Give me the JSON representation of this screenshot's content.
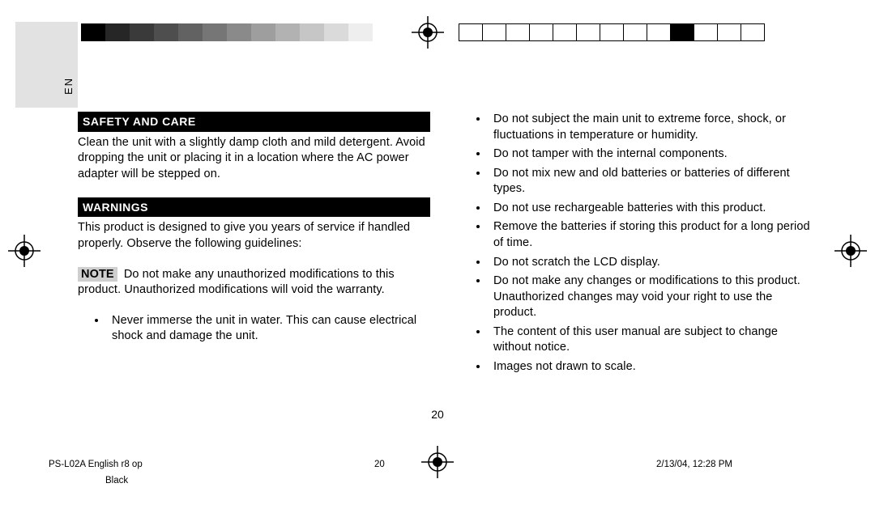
{
  "left_tab": {
    "lang": "EN"
  },
  "top": {
    "grayscale_bar": [
      "#000000",
      "#262626",
      "#3a3a3a",
      "#4e4e4e",
      "#626262",
      "#767676",
      "#8a8a8a",
      "#9e9e9e",
      "#b2b2b2",
      "#c6c6c6",
      "#dadada",
      "#eeeeee",
      "#ffffff"
    ],
    "registration_color": "#000000",
    "outline_boxes": {
      "count": 13,
      "filled_index": 9
    }
  },
  "left_col": {
    "hdr_safety": "SAFETY AND CARE",
    "safety_text": "Clean the unit with a slightly damp cloth and mild detergent. Avoid dropping the unit or placing it in a location where the AC power adapter will be stepped on.",
    "hdr_warnings": "WARNINGS",
    "warnings_intro": "This product is designed to give you years of service if handled properly.  Observe the following guidelines:",
    "note_label": "NOTE",
    "note_text": " Do not make any unauthorized modifications to this product. Unauthorized modifications will void the warranty.",
    "bullets": [
      "Never immerse the unit in water.  This can cause electrical shock and damage the unit."
    ]
  },
  "right_col": {
    "bullets": [
      "Do not subject the main unit to extreme force, shock, or fluctuations in temperature or humidity.",
      "Do not tamper with the internal components.",
      "Do not mix new and old batteries or batteries of different types.",
      "Do not use rechargeable batteries with this product.",
      "Remove the batteries if storing this product for a long period of time.",
      "Do not scratch the LCD display.",
      "Do not make any changes or modifications to this product.  Unauthorized changes may void your right to use the product.",
      "The content of this user manual are subject to change without notice.",
      "Images not drawn to scale."
    ]
  },
  "page_number": "20",
  "footer": {
    "doc_id": "PS-L02A English r8 op",
    "page": "20",
    "datetime": "2/13/04, 12:28 PM",
    "color": "Black"
  }
}
